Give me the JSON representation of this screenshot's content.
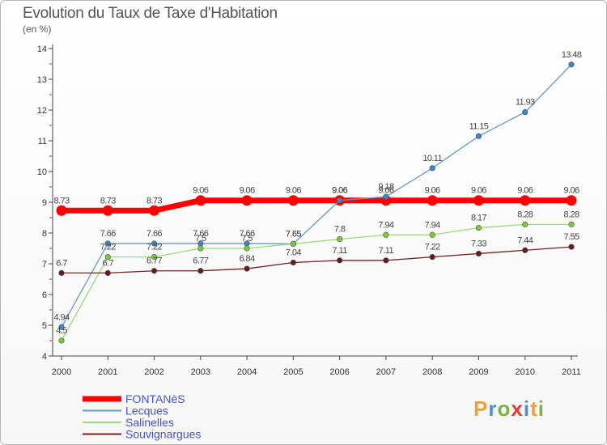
{
  "chart_data": {
    "type": "line",
    "title": "Evolution du Taux de Taxe d'Habitation",
    "subtitle": "(en %)",
    "x": [
      "2000",
      "2001",
      "2002",
      "2003",
      "2004",
      "2005",
      "2006",
      "2007",
      "2008",
      "2009",
      "2010",
      "2011"
    ],
    "ylim": [
      4,
      14
    ],
    "yticks": [
      4,
      5,
      6,
      7,
      8,
      9,
      10,
      11,
      12,
      13,
      14
    ],
    "grid": false,
    "legend_position": "bottom-left",
    "series": [
      {
        "name": "FONTANèS",
        "color": "#ff0000",
        "width": 7,
        "values": [
          8.73,
          8.73,
          8.73,
          9.06,
          9.06,
          9.06,
          9.06,
          9.06,
          9.06,
          9.06,
          9.06,
          9.06
        ]
      },
      {
        "name": "Lecques",
        "color": "#6699cc",
        "point_color": "#3a86c8",
        "width": 1.3,
        "values": [
          4.94,
          7.66,
          7.66,
          7.66,
          7.66,
          7.65,
          9.06,
          9.18,
          10.11,
          11.15,
          11.93,
          13.48
        ]
      },
      {
        "name": "Salinelles",
        "color": "#99dd77",
        "point_color": "#77cc33",
        "width": 1.3,
        "values": [
          4.5,
          7.22,
          7.22,
          7.5,
          7.5,
          7.65,
          7.8,
          7.94,
          7.94,
          8.17,
          8.28,
          8.28
        ]
      },
      {
        "name": "Souvignargues",
        "color": "#772222",
        "point_color": "#661a1a",
        "width": 1.3,
        "values": [
          6.7,
          6.7,
          6.77,
          6.77,
          6.84,
          7.04,
          7.11,
          7.11,
          7.22,
          7.33,
          7.44,
          7.55
        ]
      }
    ]
  },
  "logo": {
    "letters": [
      {
        "ch": "P",
        "color": "#e8a33d"
      },
      {
        "ch": "r",
        "color": "#4a90d9"
      },
      {
        "ch": "o",
        "color": "#7cb342"
      },
      {
        "ch": "x",
        "color": "#e53935"
      },
      {
        "ch": "i",
        "color": "#4a90d9"
      },
      {
        "ch": "t",
        "color": "#e8a33d"
      },
      {
        "ch": "i",
        "color": "#7cb342"
      }
    ]
  }
}
